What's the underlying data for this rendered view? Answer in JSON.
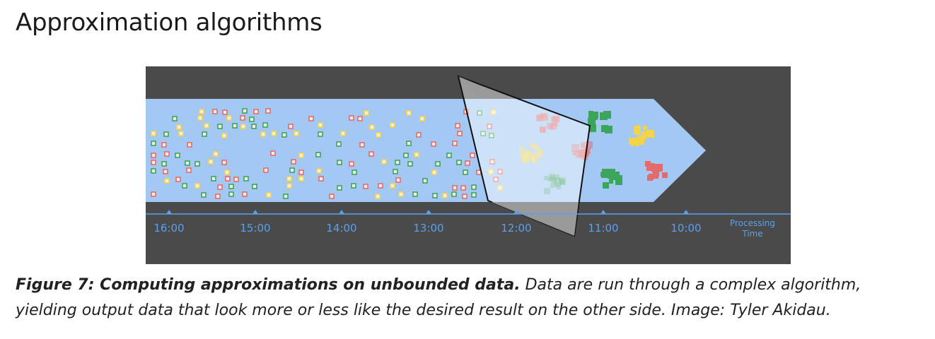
{
  "heading": "Approximation algorithms",
  "figure": {
    "time_labels": [
      "16:00",
      "15:00",
      "14:00",
      "13:00",
      "12:00",
      "11:00",
      "10:00"
    ],
    "axis_title_line1": "Processing",
    "axis_title_line2": "Time",
    "colors": {
      "background": "#4a4a4a",
      "stream": "#a4c8f4",
      "axis": "#5aa0ef",
      "square_red": "#e46b6b",
      "square_yellow": "#f3d34b",
      "square_green": "#3ca55c",
      "square_fill": "#f3efe6",
      "pane": "#9a9a9a"
    }
  },
  "caption": {
    "bold": "Figure 7: Computing approximations on unbounded data.",
    "text": " Data are run through a complex algorithm, yielding output data that look more or less like the desired result on the other side. Image: Tyler Akidau."
  }
}
